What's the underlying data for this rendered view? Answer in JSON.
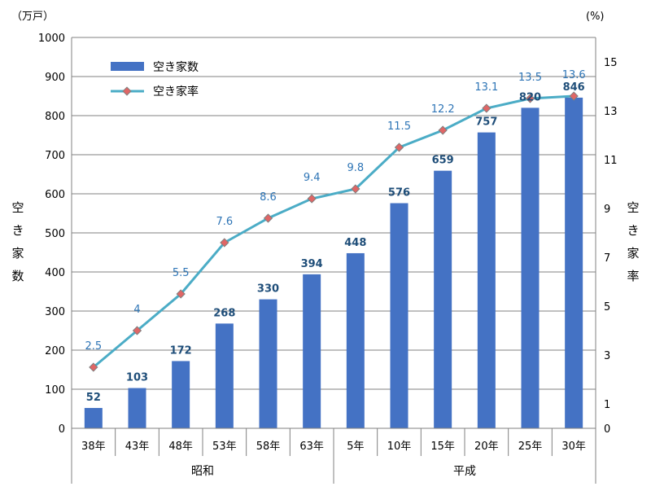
{
  "chart_data": {
    "type": "bar+line",
    "categories": [
      "38年",
      "43年",
      "48年",
      "53年",
      "58年",
      "63年",
      "5年",
      "10年",
      "15年",
      "20年",
      "25年",
      "30年"
    ],
    "eras": [
      {
        "label": "昭和",
        "start": 0,
        "end": 5
      },
      {
        "label": "平成",
        "start": 6,
        "end": 11
      }
    ],
    "series": [
      {
        "name": "空き家数",
        "type": "bar",
        "axis": "left",
        "values": [
          52,
          103,
          172,
          268,
          330,
          394,
          448,
          576,
          659,
          757,
          820,
          846
        ],
        "labels": [
          "52",
          "103",
          "172",
          "268",
          "330",
          "394",
          "448",
          "576",
          "659",
          "757",
          "820",
          "846"
        ]
      },
      {
        "name": "空き家率",
        "type": "line",
        "axis": "right",
        "values": [
          2.5,
          4,
          5.5,
          7.6,
          8.6,
          9.4,
          9.8,
          11.5,
          12.2,
          13.1,
          13.5,
          13.6
        ],
        "labels": [
          "2.5",
          "4",
          "5.5",
          "7.6",
          "8.6",
          "9.4",
          "9.8",
          "11.5",
          "12.2",
          "13.1",
          "13.5",
          "13.6"
        ]
      }
    ],
    "left_axis": {
      "unit": "（万戸）",
      "title": [
        "空",
        "き",
        "家",
        "数"
      ],
      "range": [
        0,
        1000
      ],
      "ticks": [
        "0",
        "100",
        "200",
        "300",
        "400",
        "500",
        "600",
        "700",
        "800",
        "900",
        "1000"
      ]
    },
    "right_axis": {
      "unit": "(%)",
      "title": [
        "空",
        "き",
        "家",
        "率"
      ],
      "range": [
        0,
        16
      ],
      "ticks": [
        {
          "value": 0,
          "label": "0"
        },
        {
          "value": 1,
          "label": "1"
        },
        {
          "value": 3,
          "label": "3"
        },
        {
          "value": 5,
          "label": "5"
        },
        {
          "value": 7,
          "label": "7"
        },
        {
          "value": 9,
          "label": "9"
        },
        {
          "value": 11,
          "label": "11"
        },
        {
          "value": 13,
          "label": "13"
        },
        {
          "value": 15,
          "label": "15"
        }
      ]
    },
    "legend": {
      "position": "top-left"
    },
    "grid": true,
    "colors": {
      "bar": "#4472c4",
      "line": "#4bacc6",
      "marker": "#e06666",
      "marker_stroke": "#7f7f7f",
      "bar_label": "#1f4e79",
      "line_label": "#2e75b6"
    }
  }
}
